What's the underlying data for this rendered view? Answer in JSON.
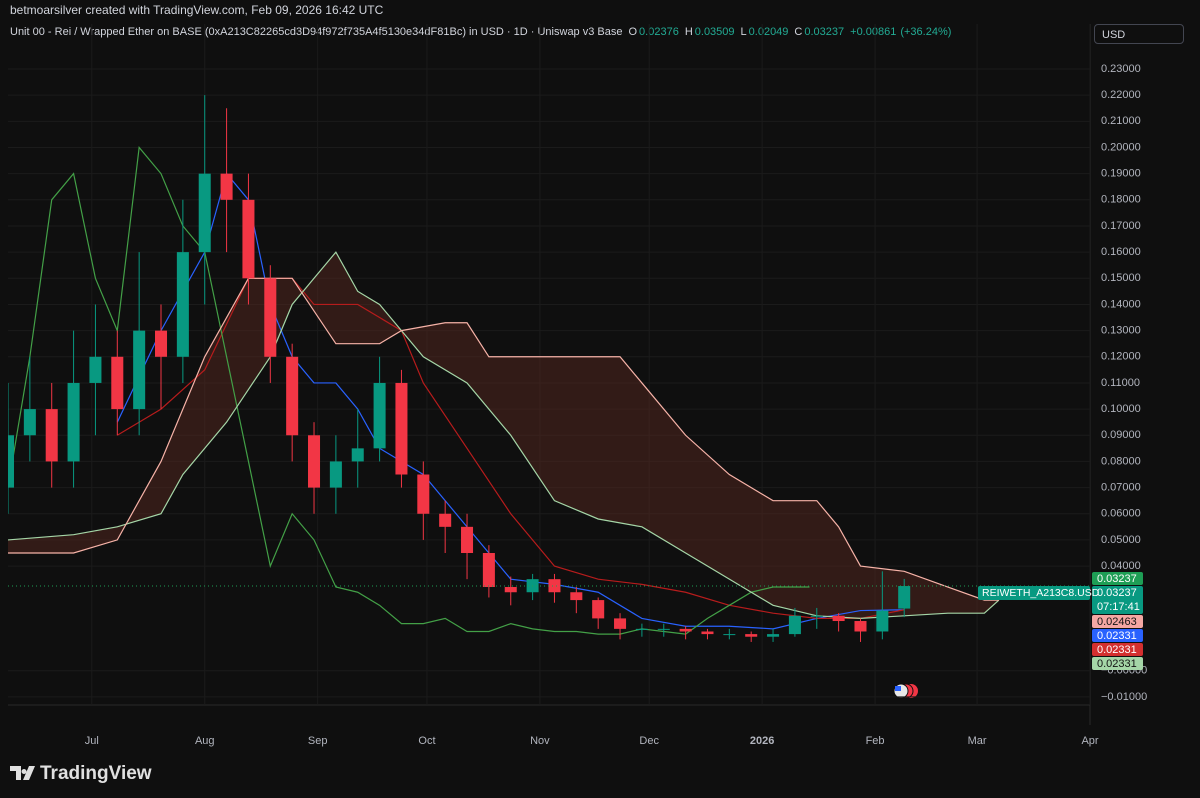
{
  "header": "betmoarsilver created with TradingView.com, Feb 09, 2026 16:42 UTC",
  "legend": {
    "symbol": "Unit 00 - Rei / Wrapped Ether on BASE (0xA213C82265cd3D94f972f735A4f5130e34dF81Bc) in USD · 1D · Uniswap v3 Base",
    "fields": [
      {
        "key": "O",
        "value": 0.02376
      },
      {
        "key": "H",
        "value": 0.03509
      },
      {
        "key": "L",
        "value": 0.02049
      },
      {
        "key": "C",
        "value": 0.03237
      }
    ],
    "change": {
      "value": 0.00861,
      "label": "+0.00861"
    },
    "change_pct": {
      "value": 36.24,
      "label": "(+36.24%)"
    }
  },
  "currency": "USD",
  "brand": "TradingView",
  "chart_data": {
    "type": "candlestick",
    "up_color": "#089981",
    "down_color": "#f23645",
    "x": [
      7,
      13,
      19,
      25,
      31,
      37,
      43,
      49,
      55,
      61,
      67,
      73,
      79,
      85,
      91,
      97,
      103,
      109,
      115,
      121,
      127,
      133,
      139,
      145,
      151,
      157,
      163,
      169,
      175,
      181,
      187,
      193,
      199,
      205,
      211,
      217,
      223,
      229,
      235,
      241,
      247,
      253
    ],
    "open": [
      0.07,
      0.09,
      0.1,
      0.08,
      0.11,
      0.12,
      0.1,
      0.13,
      0.12,
      0.16,
      0.19,
      0.18,
      0.15,
      0.12,
      0.09,
      0.07,
      0.08,
      0.085,
      0.11,
      0.075,
      0.06,
      0.055,
      0.045,
      0.032,
      0.03,
      0.035,
      0.03,
      0.027,
      0.02,
      0.016,
      0.016,
      0.016,
      0.015,
      0.014,
      0.014,
      0.013,
      0.014,
      0.021,
      0.021,
      0.019,
      0.015,
      0.02376
    ],
    "high": [
      0.11,
      0.12,
      0.11,
      0.13,
      0.14,
      0.13,
      0.16,
      0.14,
      0.18,
      0.22,
      0.215,
      0.19,
      0.155,
      0.125,
      0.095,
      0.09,
      0.1,
      0.12,
      0.115,
      0.08,
      0.065,
      0.06,
      0.048,
      0.036,
      0.037,
      0.037,
      0.032,
      0.028,
      0.022,
      0.018,
      0.018,
      0.017,
      0.016,
      0.016,
      0.015,
      0.016,
      0.024,
      0.024,
      0.022,
      0.02,
      0.038,
      0.03509
    ],
    "low": [
      0.06,
      0.08,
      0.07,
      0.07,
      0.09,
      0.09,
      0.09,
      0.1,
      0.11,
      0.14,
      0.16,
      0.14,
      0.11,
      0.08,
      0.06,
      0.06,
      0.07,
      0.08,
      0.07,
      0.05,
      0.045,
      0.035,
      0.028,
      0.025,
      0.027,
      0.026,
      0.022,
      0.016,
      0.012,
      0.013,
      0.013,
      0.012,
      0.012,
      0.012,
      0.011,
      0.011,
      0.013,
      0.016,
      0.015,
      0.011,
      0.012,
      0.02049
    ],
    "close": [
      0.09,
      0.1,
      0.08,
      0.11,
      0.12,
      0.1,
      0.13,
      0.12,
      0.16,
      0.19,
      0.18,
      0.15,
      0.12,
      0.09,
      0.07,
      0.08,
      0.085,
      0.11,
      0.075,
      0.06,
      0.055,
      0.045,
      0.032,
      0.03,
      0.035,
      0.03,
      0.027,
      0.02,
      0.016,
      0.016,
      0.016,
      0.015,
      0.014,
      0.014,
      0.013,
      0.014,
      0.021,
      0.021,
      0.019,
      0.015,
      0.023,
      0.03237
    ],
    "indicators": [
      {
        "color": "#2962ff",
        "x": [
          37,
          49,
          61,
          67,
          73,
          79,
          85,
          91,
          97,
          103,
          109,
          121,
          133,
          145,
          157,
          169,
          181,
          193,
          205,
          217,
          229,
          241,
          253
        ],
        "values": [
          0.095,
          0.13,
          0.16,
          0.19,
          0.18,
          0.14,
          0.12,
          0.11,
          0.11,
          0.1,
          0.085,
          0.075,
          0.055,
          0.035,
          0.033,
          0.03,
          0.02,
          0.017,
          0.017,
          0.016,
          0.02,
          0.023,
          0.02331
        ]
      },
      {
        "color": "#b71c1c",
        "x": [
          37,
          49,
          61,
          73,
          85,
          91,
          103,
          115,
          121,
          133,
          145,
          157,
          169,
          181,
          193,
          205,
          217,
          229,
          241,
          253
        ],
        "values": [
          0.09,
          0.1,
          0.115,
          0.15,
          0.15,
          0.14,
          0.14,
          0.13,
          0.11,
          0.085,
          0.06,
          0.04,
          0.035,
          0.033,
          0.03,
          0.025,
          0.022,
          0.02,
          0.02,
          0.02331
        ]
      },
      {
        "color": "#43a047",
        "x": [
          7,
          13,
          19,
          25,
          31,
          37,
          43,
          49,
          55,
          61,
          67,
          73,
          79,
          85,
          91,
          97,
          103,
          109,
          115,
          121,
          127,
          133,
          139,
          145,
          151,
          157,
          163,
          169,
          175,
          181,
          187,
          193,
          199,
          205,
          211,
          217,
          227
        ],
        "values": [
          0.07,
          0.12,
          0.18,
          0.19,
          0.15,
          0.13,
          0.2,
          0.19,
          0.17,
          0.16,
          0.12,
          0.08,
          0.04,
          0.06,
          0.05,
          0.032,
          0.03,
          0.025,
          0.018,
          0.018,
          0.02,
          0.015,
          0.015,
          0.018,
          0.016,
          0.015,
          0.015,
          0.014,
          0.014,
          0.016,
          0.015,
          0.014,
          0.02,
          0.025,
          0.03,
          0.032,
          0.032
        ]
      },
      {
        "color": "#a5d6a7",
        "x": [
          7,
          25,
          37,
          49,
          55,
          67,
          79,
          85,
          91,
          97,
          103,
          109,
          115,
          121,
          133,
          145,
          157,
          169,
          181,
          193,
          205,
          217,
          229,
          241,
          253,
          265,
          275,
          279
        ],
        "values": [
          0.05,
          0.052,
          0.055,
          0.06,
          0.075,
          0.095,
          0.12,
          0.14,
          0.15,
          0.16,
          0.145,
          0.14,
          0.13,
          0.12,
          0.11,
          0.09,
          0.065,
          0.058,
          0.055,
          0.045,
          0.035,
          0.025,
          0.021,
          0.02,
          0.021,
          0.022,
          0.022,
          0.027
        ]
      },
      {
        "color": "#f7b3a8",
        "x": [
          7,
          25,
          37,
          49,
          61,
          73,
          85,
          97,
          109,
          115,
          127,
          133,
          139,
          151,
          163,
          175,
          181,
          193,
          205,
          217,
          229,
          235,
          241,
          253,
          265,
          275,
          279
        ],
        "values": [
          0.045,
          0.045,
          0.05,
          0.08,
          0.12,
          0.15,
          0.15,
          0.125,
          0.125,
          0.13,
          0.133,
          0.133,
          0.12,
          0.12,
          0.12,
          0.12,
          0.11,
          0.09,
          0.075,
          0.065,
          0.065,
          0.055,
          0.04,
          0.038,
          0.032,
          0.027,
          0.027
        ]
      }
    ],
    "xlim": [
      7,
      304
    ],
    "ylim": [
      -0.0131,
      0.2472
    ],
    "xticks": [
      {
        "value": 30,
        "label": "Jul"
      },
      {
        "value": 61,
        "label": "Aug"
      },
      {
        "value": 92,
        "label": "Sep"
      },
      {
        "value": 122,
        "label": "Oct"
      },
      {
        "value": 153,
        "label": "Nov"
      },
      {
        "value": 183,
        "label": "Dec"
      },
      {
        "value": 214,
        "label": "2026"
      },
      {
        "value": 245,
        "label": "Feb"
      },
      {
        "value": 273,
        "label": "Mar"
      },
      {
        "value": 304,
        "label": "Apr"
      }
    ],
    "yticks": [
      {
        "value": 0.23,
        "label": "0.23000"
      },
      {
        "value": 0.22,
        "label": "0.22000"
      },
      {
        "value": 0.21,
        "label": "0.21000"
      },
      {
        "value": 0.2,
        "label": "0.20000"
      },
      {
        "value": 0.19,
        "label": "0.19000"
      },
      {
        "value": 0.18,
        "label": "0.18000"
      },
      {
        "value": 0.17,
        "label": "0.17000"
      },
      {
        "value": 0.16,
        "label": "0.16000"
      },
      {
        "value": 0.15,
        "label": "0.15000"
      },
      {
        "value": 0.14,
        "label": "0.14000"
      },
      {
        "value": 0.13,
        "label": "0.13000"
      },
      {
        "value": 0.12,
        "label": "0.12000"
      },
      {
        "value": 0.11,
        "label": "0.11000"
      },
      {
        "value": 0.1,
        "label": "0.10000"
      },
      {
        "value": 0.09,
        "label": "0.09000"
      },
      {
        "value": 0.08,
        "label": "0.08000"
      },
      {
        "value": 0.07,
        "label": "0.07000"
      },
      {
        "value": 0.06,
        "label": "0.06000"
      },
      {
        "value": 0.05,
        "label": "0.05000"
      },
      {
        "value": 0.04,
        "label": "0.04000"
      },
      {
        "value": 0,
        "label": "−0.00000"
      },
      {
        "value": -0.01,
        "label": "−0.01000"
      }
    ],
    "grid": true,
    "price_labels": [
      {
        "value": 0.03237,
        "color": "#1e9e55",
        "text_color": "#ffffff"
      },
      {
        "value": 0.03237,
        "color": "#089981",
        "text_color": "#ffffff",
        "countdown": "07:17:41",
        "symbol": "REIWETH_A213C8.USD"
      },
      {
        "value": 0.02463,
        "color": "#f4a7a3",
        "text_color": "#131313"
      },
      {
        "value": 0.02331,
        "color": "#2962ff",
        "text_color": "#ffffff"
      },
      {
        "value": 0.02331,
        "color": "#d32f2f",
        "text_color": "#ffffff"
      },
      {
        "value": 0.02331,
        "color": "#a5d6a7",
        "text_color": "#131313"
      }
    ]
  }
}
